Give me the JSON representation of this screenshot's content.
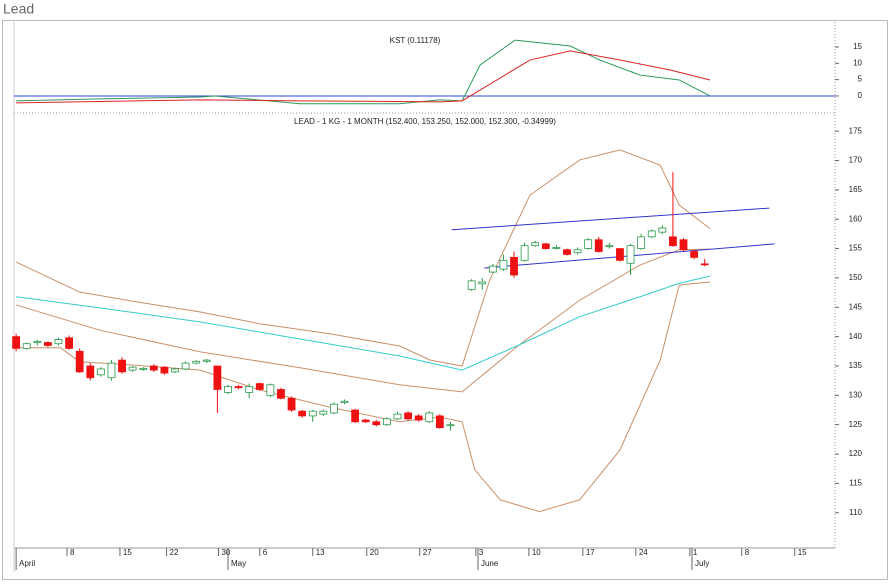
{
  "chart_data": {
    "type": "candlestick",
    "title": "Lead",
    "price_label": "LEAD - 1 KG - 1 MONTH (152.400, 153.250, 152.000, 152.300, -0.34999)",
    "kst_label": "KST (0.11178)",
    "xlim": [
      -0.2,
      77.3
    ],
    "xticks": [
      {
        "value": 4.8,
        "label": "8"
      },
      {
        "value": 9.8,
        "label": "15"
      },
      {
        "value": 14.2,
        "label": "22"
      },
      {
        "value": 19.1,
        "label": "30"
      },
      {
        "value": 23,
        "label": "6"
      },
      {
        "value": 28,
        "label": "13"
      },
      {
        "value": 33.1,
        "label": "20"
      },
      {
        "value": 38.1,
        "label": "27"
      },
      {
        "value": 43.4,
        "label": "3"
      },
      {
        "value": 48.4,
        "label": "10"
      },
      {
        "value": 53.5,
        "label": "17"
      },
      {
        "value": 58.5,
        "label": "24"
      },
      {
        "value": 63.6,
        "label": "1"
      },
      {
        "value": 68.5,
        "label": "8"
      },
      {
        "value": 73.5,
        "label": "15"
      }
    ],
    "month_ticks": [
      {
        "value": 0,
        "label": "April"
      },
      {
        "value": 20,
        "label": "May"
      },
      {
        "value": 43.6,
        "label": "June"
      },
      {
        "value": 63.8,
        "label": "July"
      }
    ],
    "ylim": [
      104,
      176.9
    ],
    "yticks": [
      110,
      115,
      120,
      125,
      130,
      135,
      140,
      145,
      150,
      155,
      160,
      165,
      170,
      175
    ],
    "kst_ylim": [
      -4.3,
      20.2
    ],
    "kst_yticks": [
      0,
      5,
      10,
      15
    ],
    "kst_zero_color": "#3344dd",
    "up_color": "#2a9a4a",
    "down_color": "#ee1111",
    "candles": {
      "x": [
        0,
        1,
        2,
        3,
        4,
        5,
        6,
        7,
        8,
        9,
        10,
        11,
        12,
        13,
        14,
        15,
        16,
        17,
        18,
        19,
        20,
        21,
        22,
        23,
        24,
        25,
        26,
        27,
        28,
        29,
        30,
        31,
        32,
        33,
        34,
        35,
        36,
        37,
        38,
        39,
        40,
        41,
        43,
        44,
        45,
        46,
        47,
        48,
        49,
        50,
        51,
        52,
        53,
        54,
        55,
        56,
        57,
        58,
        59,
        60,
        61,
        62,
        63,
        64,
        65
      ],
      "open": [
        140,
        138,
        139,
        139,
        138.8,
        139.8,
        137.5,
        135,
        133.5,
        133,
        136,
        134.3,
        134.5,
        135,
        134.8,
        134,
        134.5,
        135.5,
        135.8,
        135,
        130.5,
        131.5,
        130.5,
        132,
        130,
        131,
        129.5,
        127.3,
        126.5,
        126.8,
        127,
        128.8,
        127.5,
        125.8,
        125.5,
        125,
        126,
        127,
        126.5,
        125.5,
        126.5,
        125,
        148,
        149,
        151,
        151.5,
        153.5,
        153,
        155.5,
        155.8,
        155,
        154.8,
        154.3,
        155,
        156.5,
        155.5,
        155,
        152.5,
        155,
        157,
        157.8,
        157,
        156.5,
        154.5,
        152.4
      ],
      "high": [
        140.5,
        139,
        139.5,
        139.2,
        139.8,
        140.2,
        138,
        135.5,
        134.8,
        136,
        136.5,
        135,
        134.8,
        135.3,
        135,
        134.7,
        135.8,
        136,
        136.2,
        135,
        131.8,
        131.8,
        132,
        132.2,
        132,
        131.3,
        129.8,
        127.5,
        127.5,
        127.6,
        128.8,
        129.3,
        127.7,
        126,
        125.8,
        126.3,
        127.2,
        127.3,
        126.8,
        127.3,
        126.8,
        125.5,
        149.8,
        150,
        152.4,
        154,
        154.5,
        156,
        156.3,
        156,
        155.6,
        155,
        155.2,
        156.8,
        157,
        156,
        155,
        155.8,
        157.5,
        158.3,
        159,
        168,
        156.8,
        154.8,
        153.25
      ],
      "low": [
        137.5,
        137.8,
        138.5,
        138.2,
        138.5,
        137.8,
        133.8,
        132.5,
        133.2,
        132.5,
        133.7,
        134,
        134.2,
        134,
        133.5,
        133.8,
        134.3,
        135.3,
        135.5,
        127,
        130.2,
        131,
        129.5,
        130.8,
        129.7,
        129.3,
        127.2,
        126.2,
        125.5,
        126.5,
        126.8,
        128.5,
        125.3,
        125.3,
        124.7,
        124.8,
        125.8,
        125.7,
        125.5,
        125.3,
        124.3,
        124,
        147.8,
        148,
        150.8,
        151.2,
        150,
        152.8,
        155.3,
        154.8,
        154.8,
        153.8,
        154,
        154.8,
        154.3,
        155,
        152.8,
        150.5,
        154.8,
        156.8,
        157.5,
        155.3,
        154.5,
        153.2,
        152
      ],
      "close": [
        138,
        138.8,
        139.2,
        138.5,
        139.5,
        138,
        134,
        133,
        134.5,
        135.5,
        134,
        134.8,
        134.6,
        134.3,
        133.8,
        134.5,
        135.5,
        135.8,
        136,
        131,
        131.5,
        131.3,
        131.5,
        131,
        131.8,
        129.5,
        127.5,
        126.5,
        127.3,
        127.3,
        128.5,
        129,
        125.5,
        125.5,
        125,
        126,
        126.8,
        126,
        125.8,
        127,
        124.5,
        125,
        149.5,
        149.3,
        152,
        153,
        150.5,
        155.5,
        156,
        155,
        155.2,
        154,
        154.8,
        156.5,
        154.5,
        155.5,
        153,
        155.5,
        157,
        158,
        158.5,
        155.5,
        154.8,
        153.5,
        152.3
      ]
    },
    "lines": [
      {
        "color": "#c8906a",
        "x": [
          0,
          6,
          10.8,
          17.4,
          23,
          29.6,
          36.2,
          39.1,
          42.1,
          44.7,
          48.5,
          53.2,
          57,
          60.8,
          62.6,
          65.5
        ],
        "values": [
          152.7,
          147.6,
          146.1,
          144.2,
          142.2,
          140.5,
          138.4,
          136,
          135,
          149.6,
          164.1,
          170.1,
          171.8,
          169.2,
          162.4,
          158.4
        ]
      },
      {
        "color": "#c8906a",
        "x": [
          0,
          4.2,
          6,
          10.8,
          17.4,
          23,
          29.6,
          36.2,
          40,
          42.1,
          43.3,
          45.7,
          49.4,
          53.2,
          57,
          60.8,
          62.6,
          65.5
        ],
        "values": [
          138.1,
          138.1,
          135.7,
          135.2,
          134.3,
          130.9,
          128,
          125.5,
          126.3,
          125.5,
          117.3,
          112.2,
          110.2,
          112.2,
          120.7,
          136,
          148.8,
          149.3
        ]
      },
      {
        "color": "#c8906a",
        "x": [
          0,
          7.9,
          17.4,
          26.8,
          36.2,
          42.1,
          47.5,
          53.2,
          58.9,
          62.6,
          65.5
        ],
        "values": [
          145.4,
          141.1,
          137.4,
          134.7,
          131.8,
          130.6,
          138.6,
          146.2,
          152.2,
          154.8,
          154.9
        ]
      },
      {
        "color": "#33cccc",
        "x": [
          0,
          7.9,
          17.4,
          26.8,
          36.2,
          42.1,
          47.5,
          53.2,
          58.9,
          62.6,
          65.5
        ],
        "values": [
          146.8,
          144.9,
          142.5,
          139.6,
          136.7,
          134.3,
          138.6,
          143.4,
          146.8,
          149.1,
          150.3
        ]
      },
      {
        "color": "#3333cc",
        "x": [
          41.1,
          71.1
        ],
        "values": [
          158.2,
          161.9
        ]
      },
      {
        "color": "#3333cc",
        "x": [
          44.2,
          71.6
        ],
        "values": [
          151.7,
          155.8
        ]
      }
    ],
    "kst_lines": [
      {
        "color": "#2a9a5a",
        "x": [
          0,
          7.9,
          17.4,
          18.8,
          26.8,
          36.2,
          40,
          42.1,
          43.8,
          47.1,
          52.3,
          55.1,
          58.9,
          62.6,
          65.5
        ],
        "values": [
          -1.5,
          -0.9,
          -0.3,
          0,
          -2.4,
          -2.4,
          -1.2,
          -1.5,
          9.5,
          17.1,
          15.3,
          11,
          6.4,
          4.9,
          0
        ]
      },
      {
        "color": "#dd2222",
        "x": [
          0,
          17.4,
          26.8,
          40,
          42.1,
          43.8,
          48.5,
          52.3,
          57,
          61.7,
          65.5
        ],
        "values": [
          -2.1,
          -1.2,
          -1.5,
          -1.8,
          -1.5,
          1.8,
          11,
          13.8,
          11,
          8,
          4.9
        ]
      }
    ]
  }
}
